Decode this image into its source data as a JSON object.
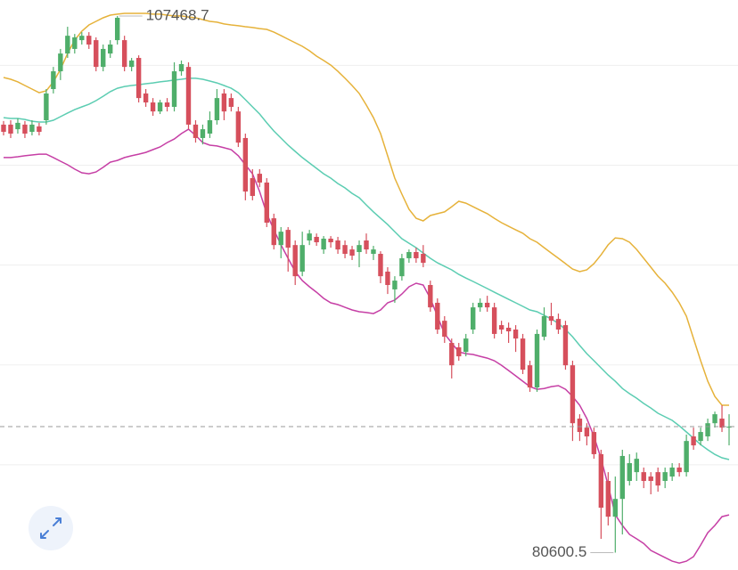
{
  "chart_data": {
    "type": "candlestick",
    "ylim": [
      79730,
      108270
    ],
    "yticks": [
      85000,
      90000,
      95000,
      100000,
      105000
    ],
    "grid": true,
    "up_color": "#4fae6a",
    "down_color": "#d64f5c",
    "open": [
      102030,
      102030,
      101800,
      102030,
      101670,
      101940,
      102250,
      103810,
      104700,
      105590,
      105820,
      106260,
      106480,
      106260,
      104920,
      105590,
      106260,
      106260,
      104920,
      105370,
      103590,
      103140,
      102690,
      103140,
      102920,
      104700,
      104920,
      102030,
      101360,
      101580,
      102250,
      103590,
      103360,
      102690,
      101360,
      99350,
      99570,
      99130,
      97340,
      96000,
      96760,
      96000,
      94670,
      96230,
      96410,
      95780,
      96320,
      96230,
      96000,
      95780,
      95650,
      96230,
      95560,
      95560,
      94670,
      93780,
      94440,
      95340,
      95650,
      95560,
      94000,
      93110,
      92210,
      91100,
      90880,
      90650,
      91770,
      92880,
      93110,
      92880,
      91990,
      91860,
      91770,
      91320,
      89980,
      88870,
      91410,
      92440,
      92300,
      91990,
      89980,
      87310,
      86860,
      86640,
      85530,
      84190,
      82400,
      83290,
      84190,
      84630,
      84630,
      84410,
      84630,
      84190,
      84410,
      84860,
      84630,
      86420,
      86190,
      86420,
      87080,
      87310,
      86860
    ],
    "high": [
      102210,
      102250,
      102340,
      102210,
      102250,
      102120,
      103810,
      104920,
      105820,
      106930,
      106570,
      106660,
      106660,
      106400,
      106040,
      106260,
      107468.7,
      106480,
      105370,
      105500,
      103810,
      103360,
      103270,
      103360,
      105150,
      105240,
      105150,
      102250,
      102030,
      102690,
      103810,
      103810,
      103590,
      102920,
      101580,
      99800,
      99800,
      99350,
      97570,
      96900,
      96900,
      96230,
      96670,
      96760,
      96580,
      96450,
      96450,
      96410,
      96230,
      95960,
      96230,
      96580,
      95960,
      95690,
      94890,
      94440,
      95560,
      95780,
      95870,
      96000,
      94220,
      93330,
      92440,
      91320,
      91100,
      91550,
      93110,
      93330,
      93460,
      93110,
      92210,
      92120,
      91990,
      91550,
      90210,
      91770,
      92880,
      93110,
      92570,
      92210,
      90210,
      87530,
      87080,
      86860,
      85750,
      84630,
      84410,
      85750,
      85530,
      85610,
      84860,
      84630,
      84860,
      84860,
      85080,
      85080,
      86510,
      86860,
      86860,
      87310,
      87660,
      87980,
      87530
    ],
    "low": [
      101490,
      101360,
      101580,
      101360,
      101490,
      101490,
      102030,
      103590,
      104260,
      105370,
      105590,
      106040,
      105820,
      104700,
      104700,
      105370,
      106040,
      104700,
      104700,
      103140,
      102920,
      102470,
      102560,
      102690,
      102690,
      104480,
      101800,
      101130,
      101040,
      101360,
      102030,
      102250,
      102690,
      100910,
      98240,
      98240,
      98900,
      96900,
      95780,
      95340,
      94670,
      94000,
      94440,
      96000,
      95960,
      95560,
      95870,
      95560,
      95340,
      95250,
      94890,
      95560,
      95250,
      94090,
      93550,
      93110,
      94220,
      95110,
      95110,
      94890,
      92660,
      91550,
      91100,
      89320,
      90210,
      90430,
      91550,
      92660,
      92660,
      91320,
      91550,
      91100,
      90650,
      89540,
      88650,
      88650,
      91230,
      91990,
      91550,
      89760,
      86190,
      86190,
      85970,
      85300,
      81290,
      81960,
      80600.5,
      81510,
      83960,
      84190,
      83830,
      83520,
      83650,
      83830,
      84190,
      84410,
      84410,
      85750,
      85970,
      86190,
      86860,
      86640,
      85970
    ],
    "close": [
      101670,
      101580,
      102120,
      101580,
      102030,
      101670,
      103590,
      104700,
      105590,
      106480,
      106400,
      106480,
      106040,
      104920,
      105820,
      106040,
      107380,
      104920,
      105240,
      103360,
      103140,
      102690,
      103140,
      102920,
      104700,
      105060,
      102030,
      101360,
      101800,
      102250,
      103360,
      102690,
      102920,
      101130,
      98680,
      98460,
      99130,
      97120,
      96000,
      96670,
      95870,
      94440,
      96000,
      96580,
      96140,
      96320,
      96140,
      95780,
      95560,
      95470,
      96000,
      95780,
      95780,
      94440,
      94000,
      94220,
      95340,
      95650,
      95340,
      95110,
      92880,
      91770,
      91410,
      89980,
      90430,
      91320,
      92880,
      93110,
      92880,
      91550,
      91770,
      91680,
      91320,
      89760,
      88870,
      91550,
      92440,
      92210,
      91770,
      89980,
      87080,
      86640,
      86420,
      85530,
      82850,
      82400,
      83290,
      85440,
      85080,
      85300,
      84190,
      84190,
      83960,
      84630,
      84860,
      84630,
      86190,
      85970,
      86640,
      87080,
      87530,
      86860,
      86910
    ],
    "bands": [
      {
        "color": "#e6b23a",
        "values": [
          104390,
          104300,
          104170,
          103990,
          103810,
          103630,
          103720,
          104170,
          104790,
          105590,
          106260,
          106710,
          107020,
          107200,
          107380,
          107510,
          107560,
          107600,
          107600,
          107600,
          107600,
          107560,
          107560,
          107510,
          107470,
          107470,
          107420,
          107380,
          107290,
          107200,
          107160,
          107070,
          107020,
          106980,
          106930,
          106890,
          106840,
          106800,
          106660,
          106490,
          106310,
          106130,
          105950,
          105730,
          105460,
          105240,
          105010,
          104700,
          104350,
          103990,
          103590,
          103010,
          102380,
          101580,
          100470,
          99350,
          98550,
          97790,
          97340,
          97210,
          97480,
          97570,
          97660,
          97920,
          98190,
          98100,
          97920,
          97740,
          97570,
          97340,
          97120,
          96940,
          96760,
          96590,
          96320,
          96140,
          95870,
          95600,
          95340,
          95070,
          94800,
          94670,
          94760,
          95070,
          95510,
          96010,
          96360,
          96320,
          96140,
          95780,
          95340,
          94890,
          94440,
          94090,
          93640,
          93110,
          92440,
          91320,
          90210,
          89180,
          88420,
          87980,
          87980
        ]
      },
      {
        "color": "#5ccdb2",
        "values": [
          102380,
          102340,
          102340,
          102290,
          102200,
          102160,
          102160,
          102250,
          102430,
          102610,
          102780,
          102920,
          103050,
          103230,
          103450,
          103680,
          103850,
          103940,
          103990,
          104030,
          104080,
          104120,
          104170,
          104210,
          104260,
          104300,
          104350,
          104350,
          104300,
          104210,
          104120,
          103990,
          103850,
          103630,
          103280,
          102920,
          102560,
          102120,
          101710,
          101360,
          101000,
          100690,
          100380,
          100110,
          99840,
          99570,
          99350,
          99080,
          98860,
          98590,
          98370,
          98010,
          97660,
          97340,
          97030,
          96670,
          96320,
          96090,
          95870,
          95600,
          95340,
          95110,
          94930,
          94760,
          94530,
          94350,
          94180,
          94000,
          93820,
          93640,
          93460,
          93280,
          93110,
          92930,
          92750,
          92660,
          92480,
          92300,
          92080,
          91770,
          91410,
          90970,
          90560,
          90210,
          89850,
          89490,
          89180,
          88820,
          88560,
          88330,
          88070,
          87840,
          87580,
          87400,
          87220,
          86950,
          86640,
          86330,
          86010,
          85750,
          85520,
          85350,
          85260
        ]
      },
      {
        "color": "#c63fa5",
        "values": [
          100380,
          100380,
          100420,
          100470,
          100510,
          100550,
          100550,
          100380,
          100200,
          100020,
          99800,
          99620,
          99570,
          99660,
          99890,
          100150,
          100240,
          100380,
          100470,
          100550,
          100640,
          100780,
          100910,
          101130,
          101310,
          101580,
          101800,
          101490,
          101130,
          101000,
          100960,
          100870,
          100780,
          100470,
          100020,
          99570,
          98680,
          97570,
          96760,
          96010,
          95340,
          94670,
          94220,
          93910,
          93640,
          93330,
          93110,
          93020,
          92880,
          92750,
          92660,
          92620,
          92570,
          92750,
          93110,
          93240,
          93550,
          93910,
          94090,
          94000,
          93330,
          92440,
          91550,
          91100,
          90650,
          90560,
          90520,
          90430,
          90340,
          90210,
          89980,
          89720,
          89450,
          89180,
          88910,
          88780,
          88820,
          88910,
          88960,
          88780,
          88420,
          87980,
          87310,
          86420,
          85300,
          83960,
          82490,
          81960,
          81510,
          81290,
          81060,
          80710,
          80530,
          80350,
          80170,
          80080,
          80170,
          80400,
          80980,
          81600,
          81960,
          82400,
          82490
        ]
      }
    ]
  }
}
